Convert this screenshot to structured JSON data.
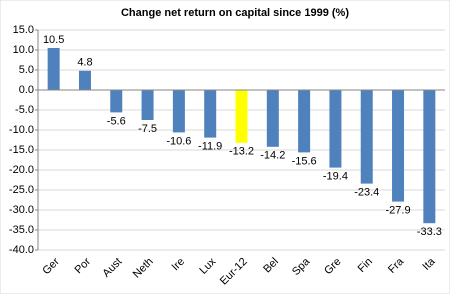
{
  "chart_data": {
    "type": "bar",
    "title": "Change net return on capital since 1999 (%)",
    "categories": [
      "Ger",
      "Por",
      "Aust",
      "Neth",
      "Ire",
      "Lux",
      "Eur-12",
      "Bel",
      "Spa",
      "Gre",
      "Fin",
      "Fra",
      "Ita"
    ],
    "values": [
      10.5,
      4.8,
      -5.6,
      -7.5,
      -10.6,
      -11.9,
      -13.2,
      -14.2,
      -15.6,
      -19.4,
      -23.4,
      -27.9,
      -33.3
    ],
    "colors": [
      "#4f81bd",
      "#4f81bd",
      "#4f81bd",
      "#4f81bd",
      "#4f81bd",
      "#4f81bd",
      "#ffff00",
      "#4f81bd",
      "#4f81bd",
      "#4f81bd",
      "#4f81bd",
      "#4f81bd",
      "#4f81bd"
    ],
    "ylim": [
      -40,
      15
    ],
    "yticks": [
      {
        "value": 15,
        "label": "15.0"
      },
      {
        "value": 10,
        "label": "10.0"
      },
      {
        "value": 5,
        "label": "5.0"
      },
      {
        "value": 0,
        "label": "0.0"
      },
      {
        "value": -5,
        "label": "-5.0"
      },
      {
        "value": -10,
        "label": "-10.0"
      },
      {
        "value": -15,
        "label": "-15.0"
      },
      {
        "value": -20,
        "label": "-20.0"
      },
      {
        "value": -25,
        "label": "-25.0"
      },
      {
        "value": -30,
        "label": "-30.0"
      },
      {
        "value": -35,
        "label": "-35.0"
      },
      {
        "value": -40,
        "label": "-40.0"
      }
    ],
    "grid": true
  }
}
